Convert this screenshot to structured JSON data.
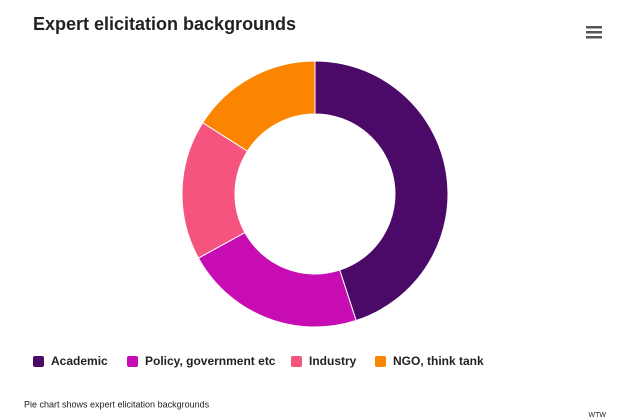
{
  "chart_data": {
    "type": "donut",
    "title": "Expert elicitation backgrounds",
    "categories": [
      "Academic",
      "Policy, government etc",
      "Industry",
      "NGO, think tank"
    ],
    "values": [
      45,
      22,
      17,
      16
    ],
    "colors": [
      "#4b0968",
      "#c80cb4",
      "#f5547e",
      "#fb8500"
    ],
    "caption": "Pie chart shows expert elicitation backgrounds",
    "credit": "WTW"
  }
}
